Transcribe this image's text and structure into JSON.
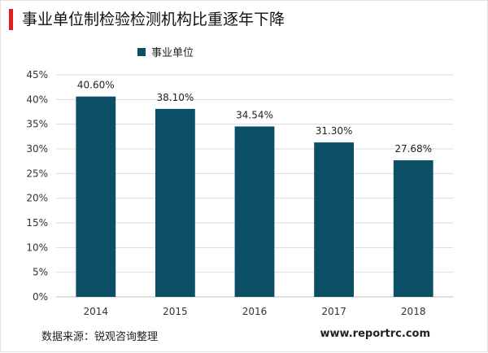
{
  "title": "事业单位制检验检测机构比重逐年下降",
  "source": "数据来源：锐观咨询整理",
  "website": "www.reportrc.com",
  "colors": {
    "bar": "#0b4f66",
    "accent": "#e02020"
  },
  "chart_data": {
    "type": "bar",
    "categories": [
      "2014",
      "2015",
      "2016",
      "2017",
      "2018"
    ],
    "series": [
      {
        "name": "事业单位",
        "values": [
          40.6,
          38.1,
          34.54,
          31.3,
          27.68
        ]
      }
    ],
    "data_labels": [
      "40.60%",
      "38.10%",
      "34.54%",
      "31.30%",
      "27.68%"
    ],
    "y_ticks": [
      "0%",
      "5%",
      "10%",
      "15%",
      "20%",
      "25%",
      "30%",
      "35%",
      "40%",
      "45%"
    ],
    "ylim": [
      0,
      45
    ],
    "grid": true,
    "legend": "top-left"
  }
}
